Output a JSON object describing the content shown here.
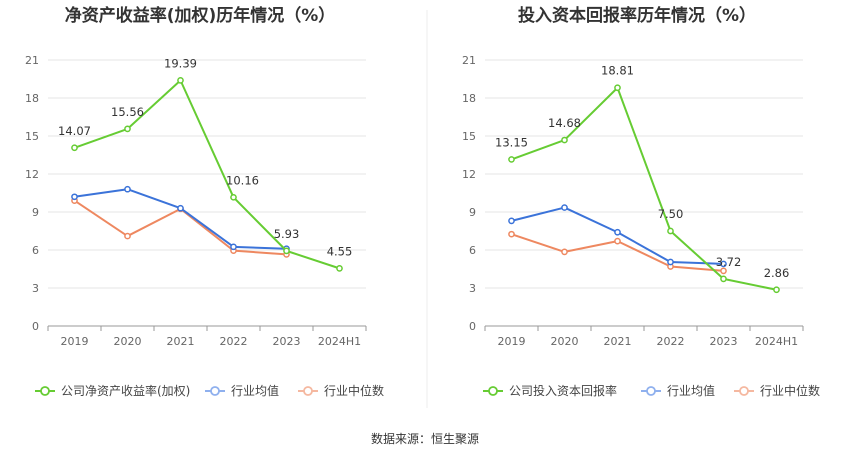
{
  "source": "数据来源：恒生聚源",
  "colors": {
    "company": "#66cc33",
    "avg": "#3b73d9",
    "median": "#ee8860",
    "avg_legend": "#8fb0ee",
    "median_legend": "#f5b8a0",
    "grid": "#e6e6e6",
    "axis": "#999999"
  },
  "chart_data": [
    {
      "type": "line",
      "title": "净资产收益率(加权)历年情况（%）",
      "categories": [
        "2019",
        "2020",
        "2021",
        "2022",
        "2023",
        "2024H1"
      ],
      "yticks": [
        "0",
        "3",
        "6",
        "9",
        "12",
        "15",
        "18",
        "21"
      ],
      "ylim": [
        0,
        21
      ],
      "series": [
        {
          "name": "公司净资产收益率(加权)",
          "key": "company",
          "values": [
            14.07,
            15.56,
            19.39,
            10.16,
            5.93,
            4.55
          ],
          "labels": [
            "14.07",
            "15.56",
            "19.39",
            "10.16",
            "5.93",
            "4.55"
          ]
        },
        {
          "name": "行业均值",
          "key": "avg",
          "values": [
            10.2,
            10.8,
            9.3,
            6.25,
            6.1,
            null
          ]
        },
        {
          "name": "行业中位数",
          "key": "median",
          "values": [
            9.9,
            7.1,
            9.25,
            5.95,
            5.65,
            null
          ]
        }
      ]
    },
    {
      "type": "line",
      "title": "投入资本回报率历年情况（%）",
      "categories": [
        "2019",
        "2020",
        "2021",
        "2022",
        "2023",
        "2024H1"
      ],
      "yticks": [
        "0",
        "3",
        "6",
        "9",
        "12",
        "15",
        "18",
        "21"
      ],
      "ylim": [
        0,
        21
      ],
      "series": [
        {
          "name": "公司投入资本回报率",
          "key": "company",
          "values": [
            13.15,
            14.68,
            18.81,
            7.5,
            3.72,
            2.86
          ],
          "labels": [
            "13.15",
            "14.68",
            "18.81",
            "7.50",
            "3.72",
            "2.86"
          ]
        },
        {
          "name": "行业均值",
          "key": "avg",
          "values": [
            8.3,
            9.35,
            7.4,
            5.05,
            4.9,
            null
          ]
        },
        {
          "name": "行业中位数",
          "key": "median",
          "values": [
            7.25,
            5.85,
            6.7,
            4.7,
            4.35,
            null
          ]
        }
      ]
    }
  ]
}
